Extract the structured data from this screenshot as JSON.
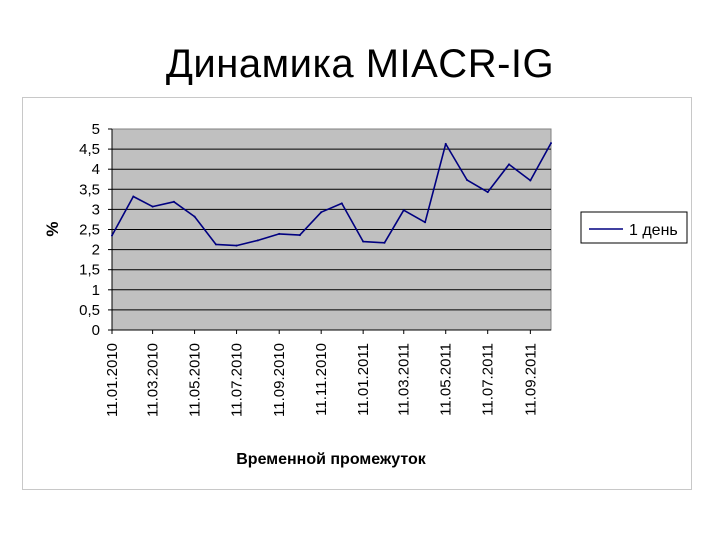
{
  "slide": {
    "title": "Динамика MIACR-IG"
  },
  "chart_data": {
    "type": "line",
    "ylabel": "%",
    "xlabel": "Временной промежуток",
    "ylim": [
      0,
      5
    ],
    "yticks": [
      "0",
      "0,5",
      "1",
      "1,5",
      "2",
      "2,5",
      "3",
      "3,5",
      "4",
      "4,5",
      "5"
    ],
    "xtick_labels": [
      "11.01.2010",
      "11.03.2010",
      "11.05.2010",
      "11.07.2010",
      "11.09.2010",
      "11.11.2010",
      "11.01.2011",
      "11.03.2011",
      "11.05.2011",
      "11.07.2011",
      "11.09.2011"
    ],
    "grid": true,
    "legend_position": "right",
    "series": [
      {
        "name": "1 день",
        "color": "#000080",
        "x": [
          "11.01.2010",
          "11.02.2010",
          "11.03.2010",
          "11.04.2010",
          "11.05.2010",
          "11.06.2010",
          "11.07.2010",
          "11.08.2010",
          "11.09.2010",
          "11.10.2010",
          "11.11.2010",
          "11.12.2010",
          "11.01.2011",
          "11.02.2011",
          "11.03.2011",
          "11.04.2011",
          "11.05.2011",
          "11.06.2011",
          "11.07.2011",
          "11.08.2011",
          "11.09.2011",
          "11.10.2011"
        ],
        "values": [
          2.35,
          3.32,
          3.07,
          3.19,
          2.82,
          2.13,
          2.1,
          2.23,
          2.39,
          2.36,
          2.93,
          3.15,
          2.2,
          2.17,
          2.98,
          2.68,
          4.63,
          3.73,
          3.43,
          4.12,
          3.72,
          4.65
        ]
      }
    ]
  }
}
